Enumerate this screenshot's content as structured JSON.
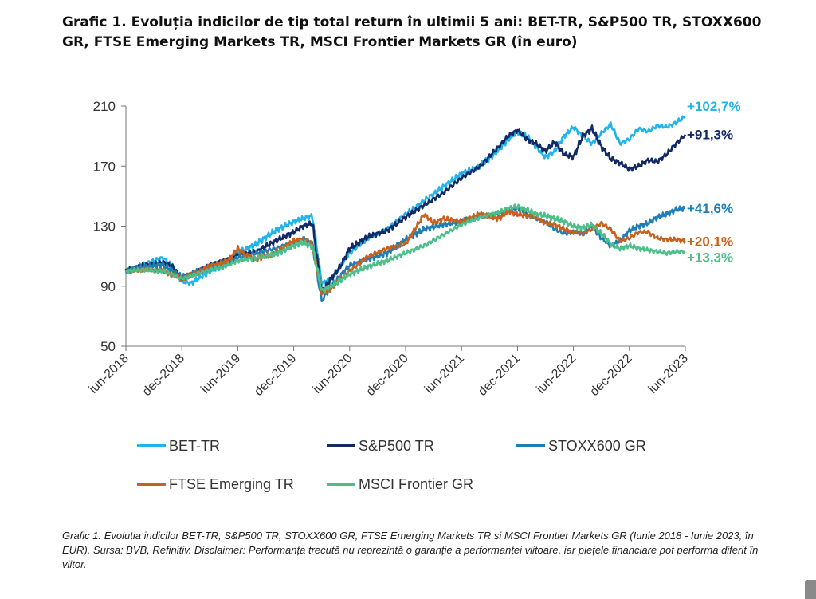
{
  "title": "Grafic 1. Evoluția indicilor de tip total return în ultimii 5 ani: BET-TR, S&P500 TR, STOXX600 GR, FTSE Emerging Markets TR, MSCI Frontier Markets GR (în euro)",
  "caption": "Grafic 1. Evoluția indicilor BET-TR, S&P500 TR, STOXX600 GR, FTSE Emerging Markets TR și MSCI Frontier Markets GR (Iunie 2018 - Iunie 2023, în EUR). Sursa: BVB, Refinitiv. Disclaimer: Performanța trecută nu reprezintă o garanție a performanței viitoare, iar piețele financiare pot performa diferit în viitor.",
  "chart_data": {
    "type": "line",
    "title": "",
    "xlabel": "",
    "ylabel": "",
    "ylim": [
      50,
      210
    ],
    "yticks": [
      50,
      90,
      130,
      170,
      210
    ],
    "xlim": [
      0,
      60
    ],
    "xticks": [
      {
        "x": 0,
        "label": "iun-2018"
      },
      {
        "x": 6,
        "label": "dec-2018"
      },
      {
        "x": 12,
        "label": "iun-2019"
      },
      {
        "x": 18,
        "label": "dec-2019"
      },
      {
        "x": 24,
        "label": "iun-2020"
      },
      {
        "x": 30,
        "label": "dec-2020"
      },
      {
        "x": 36,
        "label": "iun-2021"
      },
      {
        "x": 42,
        "label": "dec-2021"
      },
      {
        "x": 48,
        "label": "iun-2022"
      },
      {
        "x": 54,
        "label": "dec-2022"
      },
      {
        "x": 60,
        "label": "iun-2023"
      }
    ],
    "grid": false,
    "legend": "bottom",
    "series": [
      {
        "name": "BET-TR",
        "color": "#1fb4ea",
        "end_label": "+102,7%",
        "x": [
          0,
          2,
          4,
          5,
          6,
          7,
          9,
          11,
          12,
          14,
          16,
          18,
          19,
          20,
          21,
          22,
          23,
          24,
          26,
          28,
          30,
          32,
          34,
          36,
          38,
          40,
          41,
          42,
          43,
          44,
          45,
          46,
          47,
          48,
          49,
          50,
          51,
          52,
          53,
          54,
          55,
          56,
          57,
          58,
          59,
          60
        ],
        "y": [
          100,
          105,
          109,
          103,
          93,
          92,
          100,
          105,
          112,
          118,
          127,
          133,
          135,
          137,
          92,
          95,
          103,
          112,
          122,
          128,
          138,
          147,
          156,
          165,
          170,
          181,
          188,
          193,
          190,
          183,
          176,
          180,
          190,
          196,
          190,
          185,
          192,
          198,
          185,
          188,
          195,
          193,
          197,
          196,
          199,
          203
        ]
      },
      {
        "name": "S&P500 TR",
        "color": "#132a66",
        "end_label": "+91,3%",
        "x": [
          0,
          2,
          4,
          5,
          6,
          7,
          9,
          11,
          12,
          14,
          16,
          18,
          19,
          20,
          21,
          22,
          23,
          24,
          26,
          28,
          30,
          32,
          34,
          36,
          38,
          40,
          41,
          42,
          43,
          44,
          45,
          46,
          47,
          48,
          49,
          50,
          51,
          52,
          53,
          54,
          55,
          56,
          57,
          58,
          59,
          60
        ],
        "y": [
          100,
          104,
          106,
          103,
          95,
          98,
          104,
          108,
          111,
          113,
          120,
          126,
          130,
          132,
          86,
          95,
          103,
          115,
          123,
          127,
          136,
          144,
          152,
          162,
          170,
          183,
          190,
          194,
          188,
          185,
          180,
          186,
          178,
          176,
          190,
          195,
          183,
          175,
          172,
          168,
          170,
          174,
          173,
          178,
          185,
          191
        ]
      },
      {
        "name": "STOXX600 GR",
        "color": "#1d7fb5",
        "end_label": "+41,6%",
        "x": [
          0,
          2,
          4,
          6,
          7,
          9,
          11,
          12,
          14,
          16,
          18,
          19,
          20,
          21,
          22,
          23,
          24,
          26,
          28,
          30,
          32,
          34,
          36,
          38,
          40,
          41,
          42,
          43,
          44,
          45,
          46,
          47,
          48,
          49,
          50,
          51,
          52,
          53,
          54,
          55,
          56,
          57,
          58,
          59,
          60
        ],
        "y": [
          100,
          103,
          104,
          96,
          98,
          103,
          106,
          109,
          112,
          115,
          119,
          122,
          118,
          80,
          90,
          97,
          104,
          108,
          112,
          121,
          128,
          131,
          133,
          137,
          138,
          140,
          142,
          138,
          135,
          133,
          128,
          125,
          126,
          125,
          130,
          122,
          117,
          120,
          127,
          130,
          132,
          136,
          138,
          141,
          142
        ]
      },
      {
        "name": "FTSE Emerging TR",
        "color": "#c8601e",
        "end_label": "+20,1%",
        "x": [
          0,
          2,
          4,
          6,
          7,
          9,
          11,
          12,
          13,
          14,
          16,
          18,
          19,
          20,
          21,
          22,
          23,
          24,
          26,
          28,
          30,
          31,
          32,
          33,
          34,
          36,
          38,
          40,
          41,
          42,
          43,
          44,
          45,
          46,
          47,
          48,
          49,
          50,
          51,
          52,
          53,
          54,
          55,
          56,
          57,
          58,
          59,
          60
        ],
        "y": [
          100,
          101,
          100,
          95,
          97,
          103,
          107,
          115,
          110,
          108,
          112,
          120,
          121,
          118,
          85,
          88,
          95,
          100,
          110,
          115,
          118,
          128,
          138,
          132,
          135,
          133,
          138,
          135,
          140,
          138,
          137,
          136,
          132,
          131,
          128,
          126,
          125,
          128,
          132,
          128,
          120,
          122,
          126,
          126,
          122,
          121,
          121,
          120
        ]
      },
      {
        "name": "MSCI Frontier GR",
        "color": "#4dbf8a",
        "end_label": "+13,3%",
        "x": [
          0,
          2,
          4,
          6,
          7,
          9,
          11,
          12,
          14,
          16,
          18,
          19,
          20,
          21,
          22,
          23,
          24,
          26,
          28,
          30,
          32,
          34,
          36,
          38,
          40,
          41,
          42,
          43,
          44,
          45,
          46,
          47,
          48,
          49,
          50,
          51,
          52,
          53,
          54,
          55,
          56,
          57,
          58,
          59,
          60
        ],
        "y": [
          100,
          101,
          100,
          95,
          97,
          101,
          104,
          107,
          109,
          111,
          117,
          119,
          116,
          87,
          90,
          94,
          98,
          103,
          107,
          112,
          117,
          124,
          131,
          136,
          139,
          142,
          143,
          141,
          138,
          137,
          135,
          133,
          130,
          129,
          131,
          125,
          118,
          115,
          117,
          115,
          114,
          113,
          112,
          113,
          113
        ]
      }
    ]
  }
}
